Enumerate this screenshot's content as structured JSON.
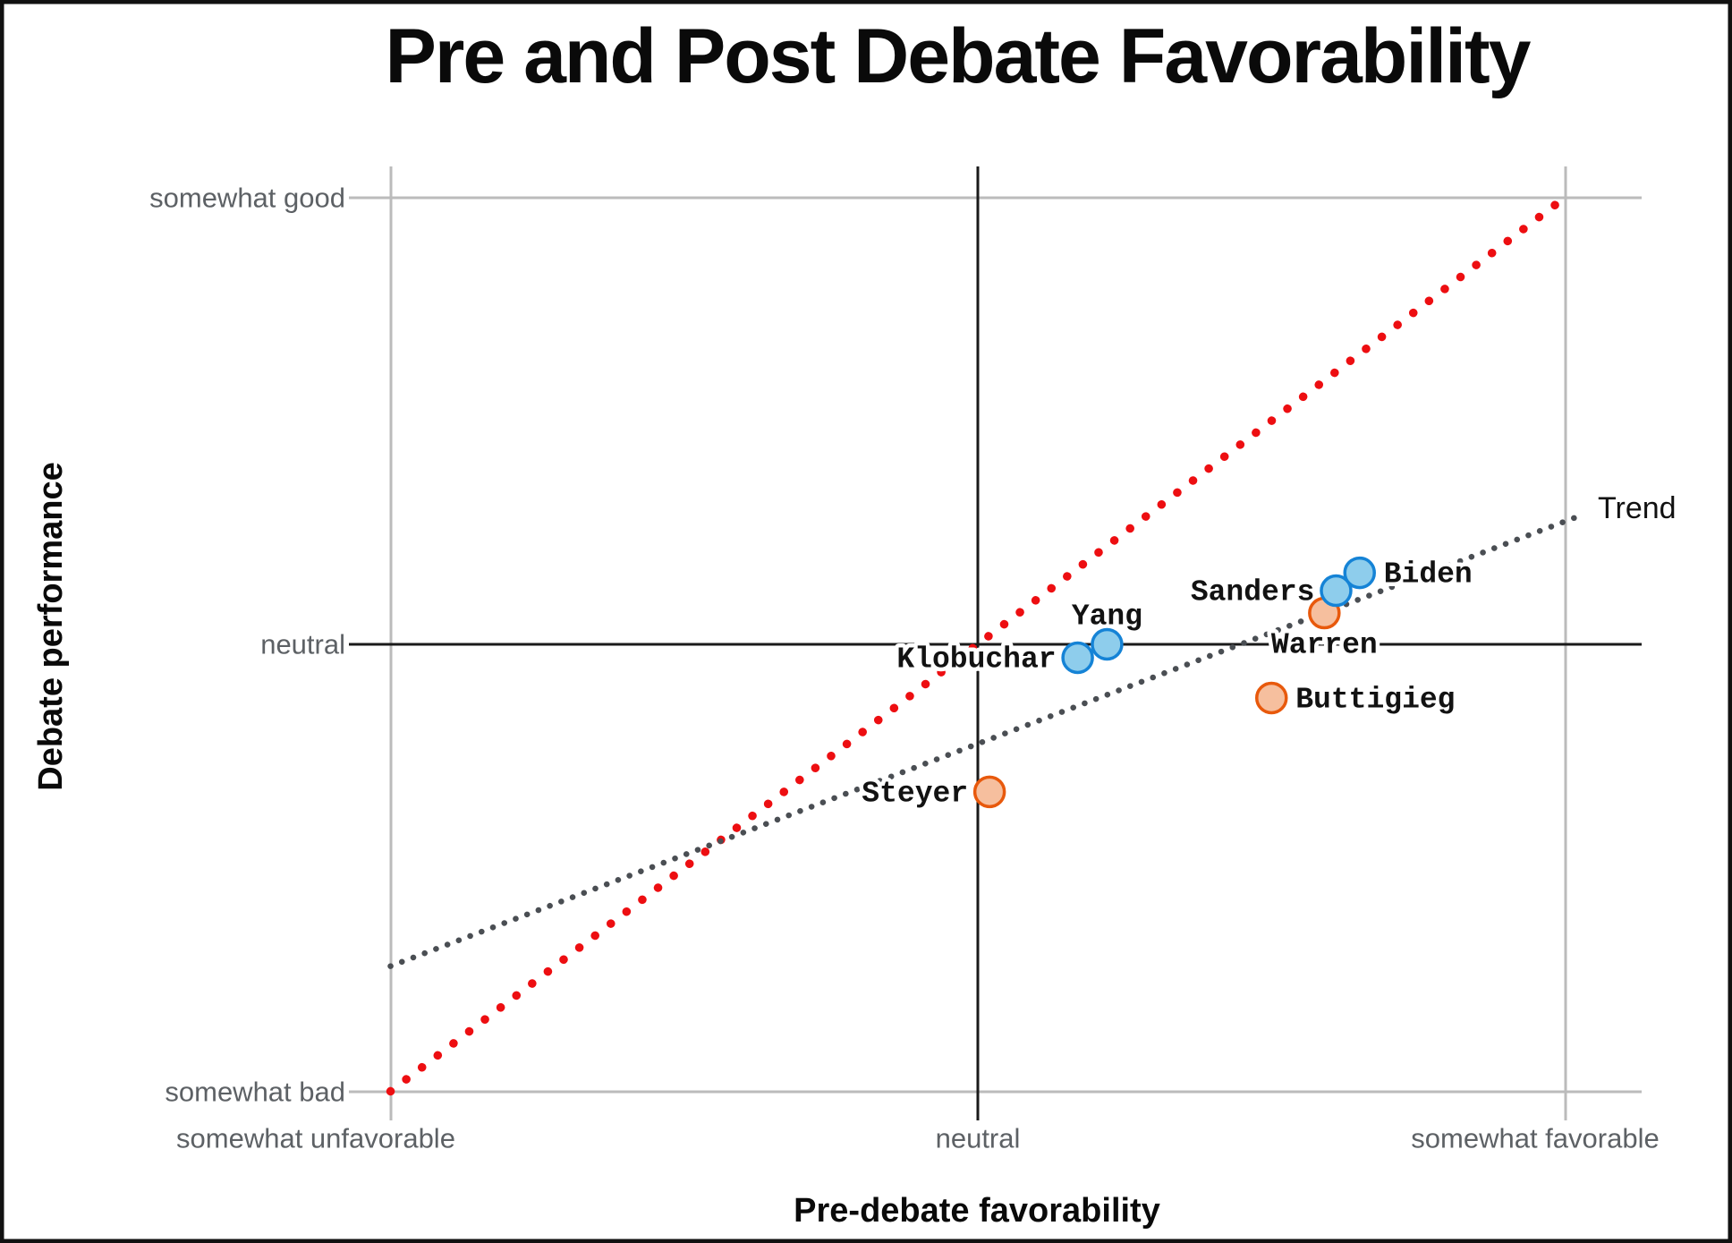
{
  "title": "Pre and Post Debate Favorability",
  "x_axis_title": "Pre-debate favorability",
  "y_axis_title": "Debate performance",
  "chart_data": {
    "type": "scatter",
    "title": "Pre and Post Debate Favorability",
    "xlabel": "Pre-debate favorability",
    "ylabel": "Debate performance",
    "xlim": [
      -1.08,
      1.13
    ],
    "ylim": [
      -1.07,
      1.08
    ],
    "grid": "gray gridlines at outer ticks, black lines at neutral",
    "legend_position": "none",
    "x_ticks": [
      {
        "value": -1,
        "label": "somewhat unfavorable"
      },
      {
        "value": 0,
        "label": "neutral"
      },
      {
        "value": 1,
        "label": "somewhat favorable"
      }
    ],
    "y_ticks": [
      {
        "value": 1,
        "label": "somewhat good"
      },
      {
        "value": 0,
        "label": "neutral"
      },
      {
        "value": -1,
        "label": "somewhat bad"
      }
    ],
    "series": [
      {
        "name": "blue",
        "points": [
          {
            "label": "Biden",
            "x": 0.65,
            "y": 0.16,
            "label_side": "right"
          },
          {
            "label": "Sanders",
            "x": 0.61,
            "y": 0.12,
            "label_side": "left"
          },
          {
            "label": "Yang",
            "x": 0.22,
            "y": 0.0,
            "label_side": "above"
          },
          {
            "label": "Klobuchar",
            "x": 0.17,
            "y": -0.03,
            "label_side": "left"
          }
        ]
      },
      {
        "name": "orange",
        "points": [
          {
            "label": "Warren",
            "x": 0.59,
            "y": 0.07,
            "label_side": "below"
          },
          {
            "label": "Buttigieg",
            "x": 0.5,
            "y": -0.12,
            "label_side": "right"
          },
          {
            "label": "Steyer",
            "x": 0.02,
            "y": -0.33,
            "label_side": "left"
          }
        ]
      }
    ],
    "identity_line": {
      "x1": -1,
      "y1": -1,
      "x2": 1,
      "y2": 1,
      "style": "dotted",
      "color": "#ed0e11"
    },
    "trend_line": {
      "label": "Trend",
      "x1": -1.0,
      "y1": -0.72,
      "x2": 1.03,
      "y2": 0.29,
      "style": "dotted",
      "color": "#4a4e53"
    }
  },
  "colors": {
    "blue_fill": "#8ecdec",
    "blue_stroke": "#1583d6",
    "orange_fill": "#f6bf9e",
    "orange_stroke": "#e8590c",
    "identity": "#ed0e11",
    "trend": "#4a4e53",
    "grid": "#bbbbbb",
    "axis": "#1a1a1a",
    "tick_text": "#5d6165",
    "border": "#111111"
  }
}
